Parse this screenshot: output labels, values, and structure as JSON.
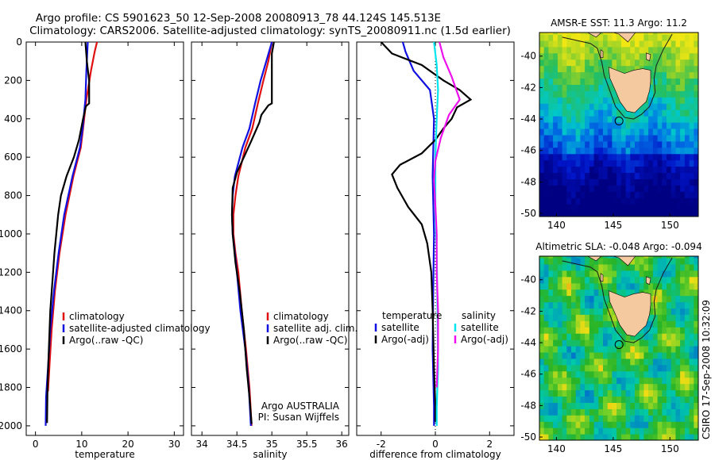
{
  "header": {
    "title_line1": "Argo profile: CS 5901623_50 12-Sep-2008 20080913_78 44.124S 145.513E",
    "title_line2": "Climatology: CARS2006. Satellite-adjusted climatology: synTS_20080911.nc (1.5d earlier)"
  },
  "side_label": "CSIRO 17-Sep-2008 10:32:09",
  "colors": {
    "climatology": "#e01010",
    "satellite": "#1010e0",
    "argo": "#000000",
    "sal_satellite": "#00e5ee",
    "sal_argo": "#ee10ee",
    "land": "#f5c9a0"
  },
  "chart_data": [
    {
      "id": "temperature",
      "type": "line",
      "xlabel": "temperature",
      "ylabel": "",
      "xlim": [
        -2,
        32
      ],
      "ylim": [
        2050,
        0
      ],
      "xticks": [
        0,
        10,
        20,
        30
      ],
      "xtick_labels": [
        "0",
        "10",
        "20",
        "30"
      ],
      "yticks": [
        0,
        200,
        400,
        600,
        800,
        1000,
        1200,
        1400,
        1600,
        1800,
        2000
      ],
      "ytick_labels": [
        "0",
        "200",
        "400",
        "600",
        "800",
        "1000",
        "1200",
        "1400",
        "1600",
        "1800",
        "2000"
      ],
      "legend": [
        "climatology",
        "satellite-adjusted climatology",
        "Argo(..raw -QC)"
      ],
      "series": [
        {
          "name": "climatology",
          "color": "#e01010",
          "points": [
            [
              13.3,
              0
            ],
            [
              12.8,
              50
            ],
            [
              12.0,
              150
            ],
            [
              11.0,
              300
            ],
            [
              10.3,
              450
            ],
            [
              9.8,
              550
            ],
            [
              8.2,
              700
            ],
            [
              6.5,
              900
            ],
            [
              5.2,
              1100
            ],
            [
              4.2,
              1300
            ],
            [
              3.5,
              1500
            ],
            [
              3.0,
              1700
            ],
            [
              2.7,
              1820
            ]
          ]
        },
        {
          "name": "satellite-adjusted climatology",
          "color": "#1010e0",
          "points": [
            [
              11.3,
              0
            ],
            [
              11.2,
              50
            ],
            [
              11.0,
              150
            ],
            [
              10.8,
              300
            ],
            [
              10.2,
              450
            ],
            [
              9.6,
              550
            ],
            [
              8.0,
              700
            ],
            [
              6.2,
              900
            ],
            [
              5.0,
              1100
            ],
            [
              4.0,
              1300
            ],
            [
              3.2,
              1500
            ],
            [
              2.7,
              1700
            ],
            [
              2.3,
              1850
            ],
            [
              2.2,
              2000
            ]
          ]
        },
        {
          "name": "Argo(..raw -QC)",
          "color": "#000000",
          "points": [
            [
              10.8,
              0
            ],
            [
              11.1,
              100
            ],
            [
              11.6,
              200
            ],
            [
              11.6,
              320
            ],
            [
              10.9,
              335
            ],
            [
              10.3,
              400
            ],
            [
              9.4,
              510
            ],
            [
              8.3,
              600
            ],
            [
              6.7,
              700
            ],
            [
              5.5,
              800
            ],
            [
              4.9,
              900
            ],
            [
              4.1,
              1100
            ],
            [
              3.8,
              1200
            ],
            [
              3.2,
              1400
            ],
            [
              2.9,
              1600
            ],
            [
              2.6,
              1800
            ],
            [
              2.5,
              1985
            ]
          ]
        }
      ]
    },
    {
      "id": "salinity",
      "type": "line",
      "xlabel": "salinity",
      "ylabel": "",
      "xlim": [
        33.85,
        36.1
      ],
      "ylim": [
        2050,
        0
      ],
      "xticks": [
        34,
        34.5,
        35,
        35.5,
        36
      ],
      "xtick_labels": [
        "34",
        "34.5",
        "35",
        "35.5",
        "36"
      ],
      "legend": [
        "climatology",
        "satellite adj. clim.",
        "Argo(..raw -QC)"
      ],
      "annotation": [
        "Argo AUSTRALIA",
        "PI: Susan Wijffels"
      ],
      "series": [
        {
          "name": "climatology",
          "color": "#e01010",
          "points": [
            [
              35.0,
              0
            ],
            [
              34.95,
              100
            ],
            [
              34.88,
              200
            ],
            [
              34.8,
              320
            ],
            [
              34.72,
              450
            ],
            [
              34.62,
              550
            ],
            [
              34.52,
              700
            ],
            [
              34.48,
              800
            ],
            [
              34.45,
              900
            ],
            [
              34.45,
              1000
            ],
            [
              34.48,
              1100
            ],
            [
              34.52,
              1200
            ],
            [
              34.57,
              1400
            ],
            [
              34.63,
              1600
            ],
            [
              34.68,
              1800
            ],
            [
              34.71,
              2000
            ]
          ]
        },
        {
          "name": "satellite adj. clim.",
          "color": "#1010e0",
          "points": [
            [
              35.0,
              0
            ],
            [
              34.92,
              100
            ],
            [
              34.84,
              200
            ],
            [
              34.76,
              320
            ],
            [
              34.68,
              450
            ],
            [
              34.58,
              550
            ],
            [
              34.47,
              700
            ],
            [
              34.44,
              800
            ],
            [
              34.43,
              900
            ],
            [
              34.44,
              1000
            ],
            [
              34.47,
              1100
            ],
            [
              34.5,
              1200
            ],
            [
              34.55,
              1400
            ],
            [
              34.62,
              1600
            ],
            [
              34.67,
              1800
            ],
            [
              34.7,
              2000
            ]
          ]
        },
        {
          "name": "Argo(..raw -QC)",
          "color": "#000000",
          "points": [
            [
              35.03,
              0
            ],
            [
              35.0,
              60
            ],
            [
              35.0,
              150
            ],
            [
              35.0,
              320
            ],
            [
              34.95,
              330
            ],
            [
              34.85,
              380
            ],
            [
              34.82,
              420
            ],
            [
              34.7,
              520
            ],
            [
              34.6,
              600
            ],
            [
              34.5,
              680
            ],
            [
              34.44,
              760
            ],
            [
              34.43,
              900
            ],
            [
              34.44,
              1000
            ],
            [
              34.48,
              1150
            ],
            [
              34.54,
              1300
            ],
            [
              34.6,
              1500
            ],
            [
              34.64,
              1700
            ],
            [
              34.68,
              1850
            ],
            [
              34.71,
              1990
            ]
          ]
        }
      ]
    },
    {
      "id": "difference",
      "type": "line",
      "xlabel": "difference from climatology",
      "ylabel": "",
      "xlim": [
        -2.9,
        2.9
      ],
      "ylim": [
        2050,
        0
      ],
      "xticks": [
        -2,
        0,
        2
      ],
      "xtick_labels": [
        "-2",
        "0",
        "2"
      ],
      "zero_line": 0,
      "legend": [
        "temperature",
        "satellite",
        "Argo(-adj)",
        "salinity",
        "satellite",
        "Argo(-adj)"
      ],
      "series": [
        {
          "name": "satellite",
          "group": "temperature",
          "color": "#1010e0",
          "points": [
            [
              -1.2,
              0
            ],
            [
              -1.1,
              50
            ],
            [
              -0.8,
              150
            ],
            [
              -0.2,
              250
            ],
            [
              -0.05,
              400
            ],
            [
              -0.1,
              700
            ],
            [
              -0.05,
              1000
            ],
            [
              -0.08,
              1300
            ],
            [
              -0.1,
              1600
            ],
            [
              -0.05,
              1900
            ],
            [
              -0.05,
              2000
            ]
          ]
        },
        {
          "name": "Argo(-adj)",
          "group": "temperature",
          "color": "#000000",
          "points": [
            [
              -2.0,
              0
            ],
            [
              -1.6,
              60
            ],
            [
              -0.5,
              120
            ],
            [
              0.3,
              200
            ],
            [
              0.9,
              250
            ],
            [
              1.3,
              300
            ],
            [
              0.8,
              340
            ],
            [
              0.6,
              400
            ],
            [
              0.3,
              450
            ],
            [
              0.0,
              510
            ],
            [
              -0.5,
              580
            ],
            [
              -1.3,
              640
            ],
            [
              -1.6,
              690
            ],
            [
              -1.4,
              760
            ],
            [
              -1.0,
              860
            ],
            [
              -0.5,
              950
            ],
            [
              -0.3,
              1050
            ],
            [
              -0.15,
              1200
            ],
            [
              -0.1,
              1400
            ],
            [
              -0.05,
              1700
            ],
            [
              0.0,
              1900
            ],
            [
              0.0,
              1980
            ]
          ]
        },
        {
          "name": "satellite",
          "group": "salinity",
          "color": "#00e5ee",
          "points": [
            [
              -0.05,
              0
            ],
            [
              0.05,
              120
            ],
            [
              0.1,
              250
            ],
            [
              0.05,
              400
            ],
            [
              0.0,
              600
            ],
            [
              0.0,
              900
            ],
            [
              0.05,
              1100
            ],
            [
              0.08,
              1400
            ],
            [
              0.1,
              1700
            ],
            [
              0.05,
              1900
            ],
            [
              0.05,
              2000
            ]
          ]
        },
        {
          "name": "Argo(-adj)",
          "group": "salinity",
          "color": "#ee10ee",
          "points": [
            [
              0.15,
              0
            ],
            [
              0.3,
              80
            ],
            [
              0.6,
              180
            ],
            [
              0.9,
              300
            ],
            [
              0.5,
              380
            ],
            [
              0.2,
              500
            ],
            [
              0.0,
              620
            ],
            [
              -0.05,
              720
            ],
            [
              0.0,
              850
            ],
            [
              0.05,
              1000
            ],
            [
              0.05,
              1200
            ],
            [
              0.1,
              1400
            ],
            [
              0.1,
              1600
            ],
            [
              0.05,
              1800
            ]
          ]
        }
      ]
    },
    {
      "id": "sst_map",
      "type": "heatmap",
      "title": "AMSR-E SST: 11.3 Argo: 11.2",
      "xlim": [
        138.5,
        152.5
      ],
      "ylim": [
        -50.2,
        -38.5
      ],
      "xticks": [
        140,
        145,
        150
      ],
      "xtick_labels": [
        "140",
        "145",
        "150"
      ],
      "yticks": [
        -40,
        -42,
        -44,
        -46,
        -48,
        -50
      ],
      "ytick_labels": [
        "-40",
        "-42",
        "-44",
        "-46",
        "-48",
        "-50"
      ],
      "argo_position": [
        145.513,
        -44.124
      ],
      "description_note": ""
    },
    {
      "id": "sla_map",
      "type": "heatmap",
      "title": "Altimetric SLA: -0.048 Argo: -0.094",
      "xlim": [
        138.5,
        152.5
      ],
      "ylim": [
        -50.2,
        -38.5
      ],
      "xticks": [
        140,
        145,
        150
      ],
      "xtick_labels": [
        "140",
        "145",
        "150"
      ],
      "yticks": [
        -40,
        -42,
        -44,
        -46,
        -48,
        -50
      ],
      "ytick_labels": [
        "-40",
        "-42",
        "-44",
        "-46",
        "-48",
        "-50"
      ],
      "argo_position": [
        145.513,
        -44.124
      ]
    }
  ]
}
